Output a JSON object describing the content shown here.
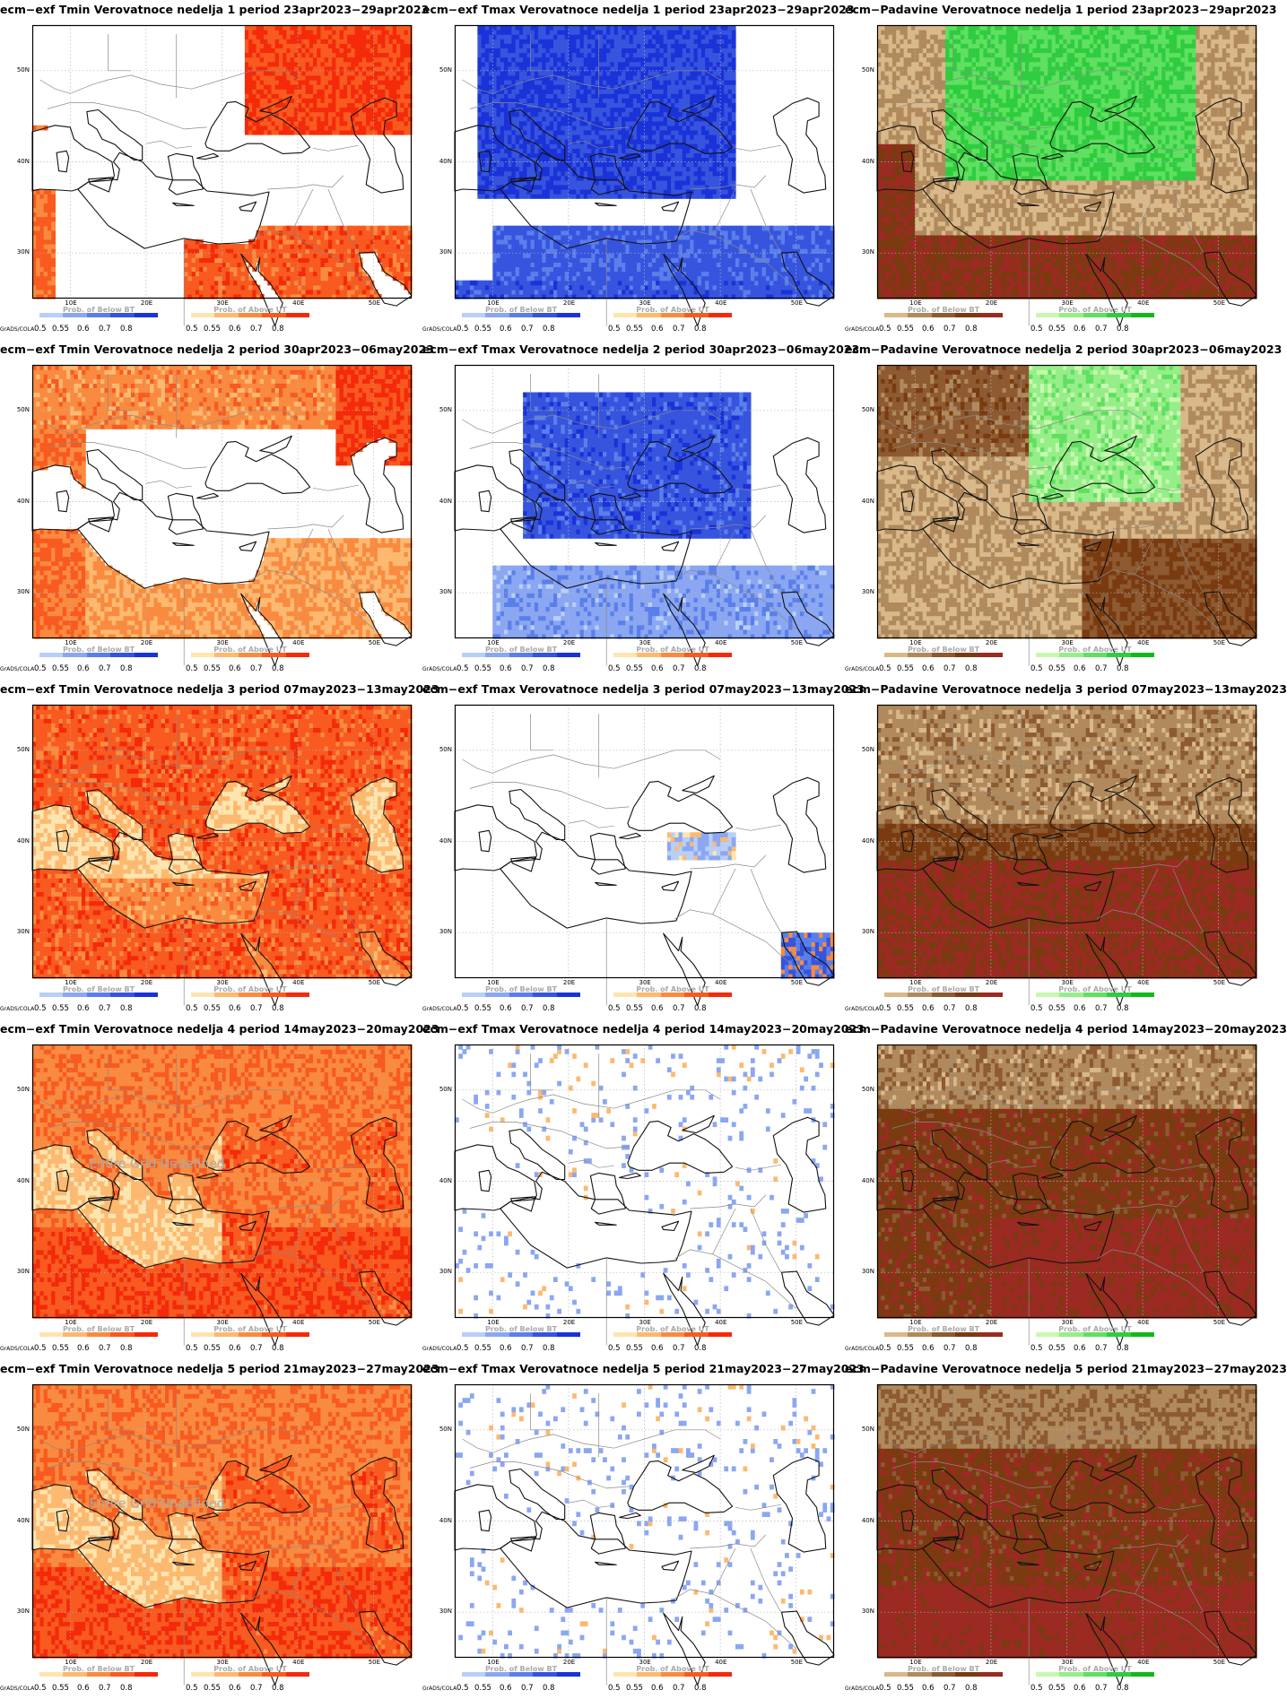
{
  "page": {
    "software_label": "GrADS/COLA"
  },
  "axes": {
    "lat_labels": [
      "50N",
      "40N",
      "30N"
    ],
    "lon_labels": [
      "10E",
      "20E",
      "30E",
      "40E",
      "50E"
    ]
  },
  "legend": {
    "below_caption": "Prob. of Below BT",
    "above_caption": "Prob. of Above UT",
    "tick_labels": [
      "0.5",
      "0.55",
      "0.6",
      "0.7",
      "0.8"
    ]
  },
  "colors": {
    "tmin_above": [
      "#fde5b0",
      "#fdb970",
      "#f98b40",
      "#f85a20",
      "#f42a0a"
    ],
    "tmax_below": [
      "#b8cff8",
      "#8ba7f2",
      "#5b7fea",
      "#3654de",
      "#1a32d8"
    ],
    "padavine_below": [
      "#d9b88a",
      "#b08a5c",
      "#8d5a32",
      "#7a3b10",
      "#9a2a22"
    ],
    "padavine_above": [
      "#c8f8b0",
      "#96ee88",
      "#5fe060",
      "#30cc40",
      "#12b81a"
    ],
    "watermark": "#aaaaaa"
  },
  "watermark_text": "Entire Grid Undefined",
  "panels": [
    {
      "title": "ecm−exf Tmin Verovatnoce nedelja 1 period 23apr2023−29apr2023"
    },
    {
      "title": "ecm−exf Tmax Verovatnoce nedelja 1 period 23apr2023−29apr2023"
    },
    {
      "title": "ecm−Padavine Verovatnoce nedelja 1 period 23apr2023−29apr2023"
    },
    {
      "title": "ecm−exf Tmin Verovatnoce nedelja 2 period 30apr2023−06may2023"
    },
    {
      "title": "ecm−exf Tmax Verovatnoce nedelja 2 period 30apr2023−06may2023"
    },
    {
      "title": "ecm−Padavine Verovatnoce nedelja 2 period 30apr2023−06may2023"
    },
    {
      "title": "ecm−exf Tmin Verovatnoce nedelja 3 period 07may2023−13may2023"
    },
    {
      "title": "ecm−exf Tmax Verovatnoce nedelja 3 period 07may2023−13may2023"
    },
    {
      "title": "ecm−Padavine Verovatnoce nedelja 3 period 07may2023−13may2023"
    },
    {
      "title": "ecm−exf Tmin Verovatnoce nedelja 4 period 14may2023−20may2023"
    },
    {
      "title": "ecm−exf Tmax Verovatnoce nedelja 4 period 14may2023−20may2023"
    },
    {
      "title": "ecm−Padavine Verovatnoce nedelja 4 period 14may2023−20may2023"
    },
    {
      "title": "ecm−exf Tmin Verovatnoce nedelja 5 period 21may2023−27may2023"
    },
    {
      "title": "ecm−exf Tmax Verovatnoce nedelja 5 period 21may2023−27may2023"
    },
    {
      "title": "ecm−Padavine Verovatnoce nedelja 5 period 21may2023−27may2023"
    }
  ]
}
